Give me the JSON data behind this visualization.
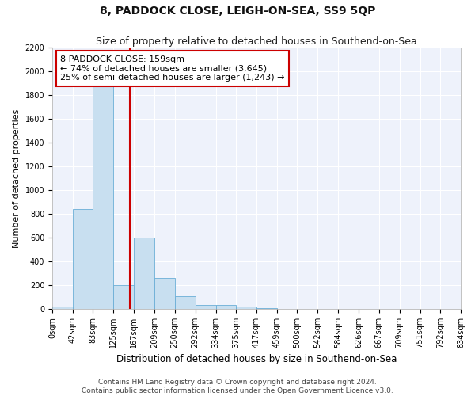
{
  "title": "8, PADDOCK CLOSE, LEIGH-ON-SEA, SS9 5QP",
  "subtitle": "Size of property relative to detached houses in Southend-on-Sea",
  "xlabel": "Distribution of detached houses by size in Southend-on-Sea",
  "ylabel": "Number of detached properties",
  "bar_values": [
    20,
    840,
    1900,
    200,
    600,
    260,
    110,
    35,
    35,
    20,
    10,
    0,
    0,
    0,
    0,
    0,
    0,
    0,
    0,
    0
  ],
  "bar_edges": [
    0,
    42,
    83,
    125,
    167,
    209,
    250,
    292,
    334,
    375,
    417,
    459,
    500,
    542,
    584,
    626,
    667,
    709,
    751,
    792,
    834
  ],
  "tick_labels": [
    "0sqm",
    "42sqm",
    "83sqm",
    "125sqm",
    "167sqm",
    "209sqm",
    "250sqm",
    "292sqm",
    "334sqm",
    "375sqm",
    "417sqm",
    "459sqm",
    "500sqm",
    "542sqm",
    "584sqm",
    "626sqm",
    "667sqm",
    "709sqm",
    "751sqm",
    "792sqm",
    "834sqm"
  ],
  "property_line_x": 159,
  "ylim": [
    0,
    2200
  ],
  "yticks": [
    0,
    200,
    400,
    600,
    800,
    1000,
    1200,
    1400,
    1600,
    1800,
    2000,
    2200
  ],
  "bar_color": "#c8dff0",
  "bar_edge_color": "#6aaed6",
  "line_color": "#cc0000",
  "annotation_line1": "8 PADDOCK CLOSE: 159sqm",
  "annotation_line2": "← 74% of detached houses are smaller (3,645)",
  "annotation_line3": "25% of semi-detached houses are larger (1,243) →",
  "annotation_box_color": "#ffffff",
  "annotation_box_edge_color": "#cc0000",
  "footer_text": "Contains HM Land Registry data © Crown copyright and database right 2024.\nContains public sector information licensed under the Open Government Licence v3.0.",
  "background_color": "#eef2fb",
  "title_fontsize": 10,
  "subtitle_fontsize": 9,
  "xlabel_fontsize": 8.5,
  "ylabel_fontsize": 8,
  "tick_fontsize": 7,
  "annotation_fontsize": 8,
  "footer_fontsize": 6.5
}
